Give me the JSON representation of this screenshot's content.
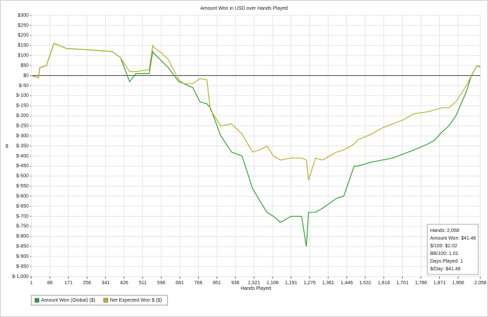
{
  "chart_data": {
    "type": "line",
    "title": "Amount Won in USD over Hands Played",
    "x_label": "Hands Played",
    "y_label": "$",
    "x": [
      1,
      33,
      40,
      70,
      104,
      130,
      162,
      242,
      306,
      371,
      409,
      451,
      480,
      541,
      557,
      563,
      600,
      628,
      676,
      699,
      741,
      773,
      805,
      821,
      869,
      918,
      966,
      1014,
      1046,
      1080,
      1110,
      1142,
      1191,
      1239,
      1261,
      1271,
      1303,
      1335,
      1400,
      1432,
      1480,
      1496,
      1561,
      1609,
      1657,
      1705,
      1753,
      1818,
      1850,
      1882,
      1914,
      1946,
      1994,
      2017,
      2043,
      2058
    ],
    "series": [
      {
        "name": "Amount Won (Global) ($)",
        "color": "#2ea02e",
        "values": [
          0,
          -10,
          40,
          50,
          160,
          150,
          135,
          130,
          125,
          120,
          90,
          -30,
          10,
          10,
          120,
          110,
          70,
          40,
          -30,
          -40,
          -60,
          -130,
          -140,
          -160,
          -300,
          -380,
          -400,
          -560,
          -620,
          -680,
          -700,
          -730,
          -700,
          -700,
          -850,
          -680,
          -680,
          -660,
          -610,
          -600,
          -450,
          -450,
          -430,
          -420,
          -410,
          -390,
          -370,
          -340,
          -320,
          -280,
          -250,
          -200,
          -80,
          0,
          50,
          41.48
        ]
      },
      {
        "name": "Net Expected Won $ ($)",
        "color": "#b8b030",
        "values": [
          0,
          -10,
          40,
          50,
          160,
          150,
          135,
          130,
          125,
          120,
          90,
          20,
          20,
          30,
          150,
          140,
          110,
          80,
          -20,
          -40,
          -40,
          -15,
          -20,
          -170,
          -250,
          -240,
          -290,
          -380,
          -370,
          -350,
          -400,
          -420,
          -410,
          -410,
          -420,
          -520,
          -410,
          -420,
          -380,
          -370,
          -340,
          -320,
          -290,
          -260,
          -240,
          -220,
          -190,
          -180,
          -170,
          -160,
          -160,
          -130,
          -50,
          0,
          50,
          45
        ]
      }
    ],
    "xlim": [
      1,
      2058
    ],
    "xticks": [
      1,
      86,
      171,
      256,
      341,
      426,
      511,
      596,
      681,
      766,
      851,
      936,
      {
        "value": 1021,
        "label": "1,021"
      },
      {
        "value": 1106,
        "label": "1,106"
      },
      {
        "value": 1191,
        "label": "1,191"
      },
      {
        "value": 1276,
        "label": "1,276"
      },
      {
        "value": 1361,
        "label": "1,361"
      },
      {
        "value": 1446,
        "label": "1,446"
      },
      {
        "value": 1531,
        "label": "1,531"
      },
      {
        "value": 1616,
        "label": "1,616"
      },
      {
        "value": 1701,
        "label": "1,701"
      },
      {
        "value": 1786,
        "label": "1,786"
      },
      {
        "value": 1871,
        "label": "1,871"
      },
      {
        "value": 1956,
        "label": "1,956"
      },
      {
        "value": 2058,
        "label": "2,058"
      }
    ],
    "ylim": [
      -1000,
      300
    ],
    "yticks": [
      {
        "value": 300,
        "label": "$300"
      },
      {
        "value": 250,
        "label": "$250"
      },
      {
        "value": 200,
        "label": "$200"
      },
      {
        "value": 150,
        "label": "$150"
      },
      {
        "value": 100,
        "label": "$100"
      },
      {
        "value": 50,
        "label": "$50"
      },
      {
        "value": 0,
        "label": "$0"
      },
      {
        "value": -50,
        "label": "$-50"
      },
      {
        "value": -100,
        "label": "$-100"
      },
      {
        "value": -150,
        "label": "$-150"
      },
      {
        "value": -200,
        "label": "$-200"
      },
      {
        "value": -250,
        "label": "$-250"
      },
      {
        "value": -300,
        "label": "$-300"
      },
      {
        "value": -350,
        "label": "$-350"
      },
      {
        "value": -400,
        "label": "$-400"
      },
      {
        "value": -450,
        "label": "$-450"
      },
      {
        "value": -500,
        "label": "$-500"
      },
      {
        "value": -550,
        "label": "$-550"
      },
      {
        "value": -600,
        "label": "$-600"
      },
      {
        "value": -650,
        "label": "$-650"
      },
      {
        "value": -700,
        "label": "$-700"
      },
      {
        "value": -750,
        "label": "$-750"
      },
      {
        "value": -800,
        "label": "$-800"
      },
      {
        "value": -850,
        "label": "$-850"
      },
      {
        "value": -900,
        "label": "$-900"
      },
      {
        "value": -950,
        "label": "$-950"
      },
      {
        "value": -1000,
        "label": "$-1,000"
      }
    ],
    "grid": true,
    "legend": "bottom-left",
    "annotations": [
      "Hands: 2,058",
      "Amount Won: $41.48",
      "$/100: $2.02",
      "BB/100: 1.01",
      "Days Played: 1",
      "$/Day: $41.48"
    ]
  }
}
